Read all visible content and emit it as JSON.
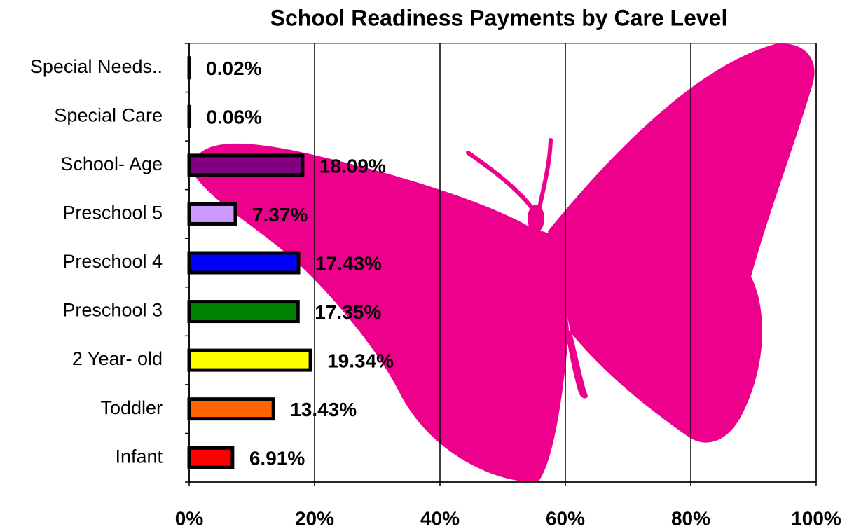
{
  "chart_data": {
    "type": "bar",
    "orientation": "horizontal",
    "title": "School Readiness Payments by Care Level",
    "categories": [
      "Special Needs..",
      "Special Care",
      "School- Age",
      "Preschool 5",
      "Preschool 4",
      "Preschool 3",
      "2 Year- old",
      "Toddler",
      "Infant"
    ],
    "values": [
      0.02,
      0.06,
      18.09,
      7.37,
      17.43,
      17.35,
      19.34,
      13.43,
      6.91
    ],
    "value_labels": [
      "0.02%",
      "0.06%",
      "18.09%",
      "7.37%",
      "17.43%",
      "17.35%",
      "19.34%",
      "13.43%",
      "6.91%"
    ],
    "colors": [
      "#000000",
      "#000000",
      "#800080",
      "#cc99ff",
      "#0000ff",
      "#008000",
      "#ffff00",
      "#ff6600",
      "#ff0000"
    ],
    "xlim": [
      0,
      100
    ],
    "xticks": [
      {
        "value": 0,
        "label": "0%"
      },
      {
        "value": 20,
        "label": "20%"
      },
      {
        "value": 40,
        "label": "40%"
      },
      {
        "value": 60,
        "label": "60%"
      },
      {
        "value": 80,
        "label": "80%"
      },
      {
        "value": 100,
        "label": "100%"
      }
    ],
    "grid": true
  }
}
